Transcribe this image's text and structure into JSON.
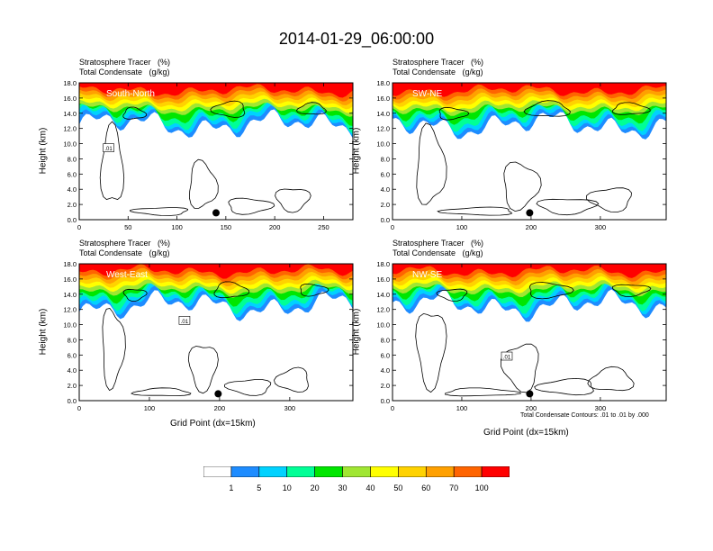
{
  "figure": {
    "title": "2014-01-29_06:00:00",
    "ylabel": "Height (km)",
    "xlabel": "Grid Point (dx=15km)",
    "footnote": "Total Condensate Contours: .01 to .01 by .000"
  },
  "panels": [
    {
      "id": "south-north",
      "var1": "Stratosphere Tracer   (%)",
      "var2": "Total Condensate   (g/kg)",
      "label": "South-North",
      "xmax": 280,
      "xticks": [
        0,
        50,
        100,
        150,
        200,
        250
      ],
      "marker_x": 140,
      "contour_label": ".01",
      "contour_label_x": 30,
      "contour_label_y": 9.4
    },
    {
      "id": "sw-ne",
      "var1": "Stratosphere Tracer   (%)",
      "var2": "Total Condensate   (g/kg)",
      "label": "SW-NE",
      "xmax": 395,
      "xticks": [
        0,
        100,
        200,
        300
      ],
      "marker_x": 198,
      "contour_label": "",
      "contour_label_x": 0,
      "contour_label_y": 0
    },
    {
      "id": "west-east",
      "var1": "Stratosphere Tracer   (%)",
      "var2": "Total Condensate   (g/kg)",
      "label": "West-East",
      "xmax": 390,
      "xticks": [
        0,
        100,
        200,
        300
      ],
      "marker_x": 198,
      "contour_label": ".01",
      "contour_label_x": 150,
      "contour_label_y": 10.5
    },
    {
      "id": "nw-se",
      "var1": "Stratosphere Tracer   (%)",
      "var2": "Total Condensate   (g/kg)",
      "label": "NW-SE",
      "xmax": 395,
      "xticks": [
        0,
        100,
        200,
        300
      ],
      "marker_x": 198,
      "contour_label": ".01",
      "contour_label_x": 165,
      "contour_label_y": 5.8
    }
  ],
  "chart_data": {
    "type": "heatmap",
    "title": "2014-01-29_06:00:00",
    "xlabel": "Grid Point (dx=15km)",
    "ylabel": "Height (km)",
    "ylim": [
      0,
      18
    ],
    "yticks": [
      0.0,
      2.0,
      4.0,
      6.0,
      8.0,
      10.0,
      12.0,
      14.0,
      16.0,
      18.0
    ],
    "ytick_labels": [
      "0.0",
      "2.0",
      "4.0",
      "6.0",
      "8.0",
      "10.0",
      "12.0",
      "14.0",
      "16.0",
      "18.0"
    ],
    "colorbar": {
      "levels": [
        1,
        5,
        10,
        20,
        30,
        40,
        50,
        60,
        70,
        100
      ],
      "level_labels": [
        "1",
        "5",
        "10",
        "20",
        "30",
        "40",
        "50",
        "60",
        "70",
        "100"
      ],
      "colors": [
        "#ffffff",
        "#1e8cff",
        "#00d2ff",
        "#00ff96",
        "#00e600",
        "#a0e632",
        "#ffff00",
        "#ffd200",
        "#ffa000",
        "#ff6400",
        "#ff0000"
      ]
    },
    "contours": {
      "variable": "Total Condensate",
      "units": "g/kg",
      "levels": [
        0.01
      ]
    },
    "tracer_profile": {
      "description_heights_km": [
        12.5,
        13.0,
        13.5,
        14.0,
        14.5,
        15.0,
        15.5,
        16.0,
        16.5,
        17.0
      ],
      "values_pct": [
        1,
        5,
        10,
        20,
        30,
        40,
        50,
        60,
        70,
        100
      ]
    }
  }
}
